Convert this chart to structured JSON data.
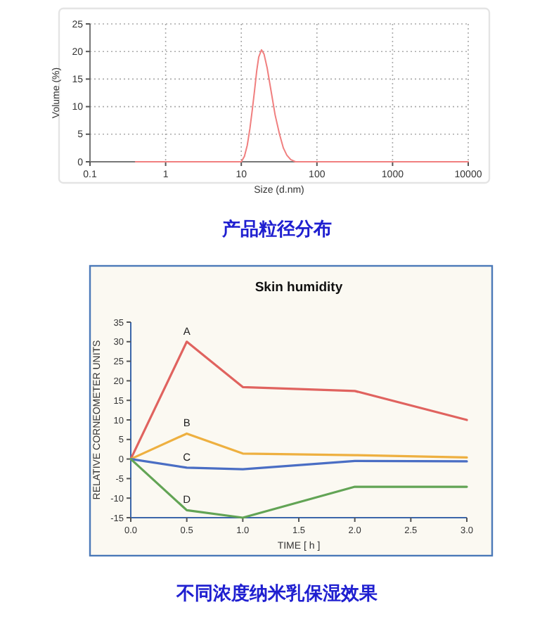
{
  "chart_data": [
    {
      "type": "line",
      "xlabel": "Size (d.nm)",
      "ylabel": "Volume (%)",
      "log": "x",
      "grid": true,
      "xlim": [
        0.1,
        10000
      ],
      "xticks": [
        0.1,
        1,
        10,
        100,
        1000,
        10000
      ],
      "ylim": [
        0,
        25
      ],
      "yticks": [
        0,
        5,
        10,
        15,
        20,
        25
      ],
      "annotations": [
        "产品粒径分布"
      ],
      "series": [
        {
          "color": "#f07f7f",
          "x": [
            0.4,
            10,
            11,
            12,
            13,
            14,
            15,
            16,
            17,
            18.5,
            20,
            22,
            25,
            28,
            32,
            36,
            40,
            45,
            52,
            10000
          ],
          "values": [
            0,
            0,
            1,
            3,
            6,
            9.5,
            13,
            16.5,
            19,
            20.3,
            19.5,
            17,
            12.5,
            8.5,
            5,
            2.5,
            1.2,
            0.4,
            0,
            0
          ]
        }
      ]
    },
    {
      "type": "line",
      "title": "Skin humidity",
      "xlabel": "TIME [ h ]",
      "ylabel": "RELATIVE CORNEOMETER UNITS",
      "xlim": [
        0,
        3
      ],
      "xticks": [
        {
          "value": 0,
          "label": "0.0"
        },
        {
          "value": 0.5,
          "label": "0.5"
        },
        {
          "value": 1,
          "label": "1.0"
        },
        {
          "value": 1.5,
          "label": "1.5"
        },
        {
          "value": 2,
          "label": "2.0"
        },
        {
          "value": 2.5,
          "label": "2.5"
        },
        {
          "value": 3,
          "label": "3.0"
        }
      ],
      "ylim": [
        -15,
        35
      ],
      "yticks": [
        -15,
        -10,
        -5,
        0,
        5,
        10,
        15,
        20,
        25,
        30,
        35
      ],
      "annotations": [
        "不同浓度纳米乳保湿效果"
      ],
      "series": [
        {
          "name": "A",
          "color": "#e0635f",
          "x": [
            0,
            0.5,
            1,
            2,
            3
          ],
          "values": [
            0,
            30,
            18.4,
            17.4,
            10
          ]
        },
        {
          "name": "B",
          "color": "#eeb040",
          "x": [
            0,
            0.5,
            1,
            2,
            3
          ],
          "values": [
            0,
            6.5,
            1.4,
            1,
            0.4
          ]
        },
        {
          "name": "C",
          "color": "#4a6ec4",
          "x": [
            0,
            0.5,
            1,
            2,
            3
          ],
          "values": [
            0,
            -2.2,
            -2.6,
            -0.5,
            -0.6
          ]
        },
        {
          "name": "D",
          "color": "#62a455",
          "x": [
            0,
            0.5,
            1,
            2,
            3
          ],
          "values": [
            0,
            -13.1,
            -15,
            -7.1,
            -7.1
          ]
        }
      ]
    }
  ]
}
